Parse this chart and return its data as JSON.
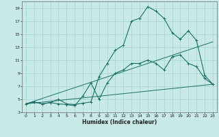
{
  "bg_color": "#c8eae6",
  "grid_color": "#a8d8d4",
  "line_color": "#1a6e66",
  "xlabel": "Humidex (Indice chaleur)",
  "xlim": [
    -0.5,
    23.5
  ],
  "ylim": [
    3,
    20
  ],
  "yticks": [
    3,
    5,
    7,
    9,
    11,
    13,
    15,
    17,
    19
  ],
  "xticks": [
    0,
    1,
    2,
    3,
    4,
    5,
    6,
    7,
    8,
    9,
    10,
    11,
    12,
    13,
    14,
    15,
    16,
    17,
    18,
    19,
    20,
    21,
    22,
    23
  ],
  "curve1_x": [
    0,
    1,
    2,
    3,
    4,
    5,
    6,
    7,
    8,
    9,
    10,
    11,
    12,
    13,
    14,
    15,
    16,
    17,
    18,
    19,
    20,
    21,
    22,
    23
  ],
  "curve1_y": [
    4.3,
    4.6,
    4.3,
    4.5,
    5.0,
    4.3,
    4.2,
    4.4,
    4.6,
    8.5,
    10.5,
    12.5,
    13.3,
    17.0,
    17.4,
    19.2,
    18.5,
    17.4,
    15.2,
    14.2,
    15.5,
    14.0,
    8.7,
    7.3
  ],
  "curve2_x": [
    0,
    1,
    2,
    3,
    4,
    5,
    6,
    7,
    8,
    9,
    10,
    11,
    12,
    13,
    14,
    15,
    16,
    17,
    18,
    19,
    20,
    21,
    22,
    23
  ],
  "curve2_y": [
    4.3,
    4.6,
    4.3,
    4.5,
    4.3,
    4.2,
    4.0,
    5.5,
    7.5,
    5.0,
    7.5,
    9.0,
    9.5,
    10.5,
    10.5,
    11.0,
    10.5,
    9.5,
    11.5,
    11.8,
    10.5,
    10.0,
    8.2,
    7.3
  ],
  "curve3_x": [
    0,
    23
  ],
  "curve3_y": [
    4.3,
    13.8
  ],
  "curve4_x": [
    0,
    23
  ],
  "curve4_y": [
    4.3,
    7.3
  ]
}
